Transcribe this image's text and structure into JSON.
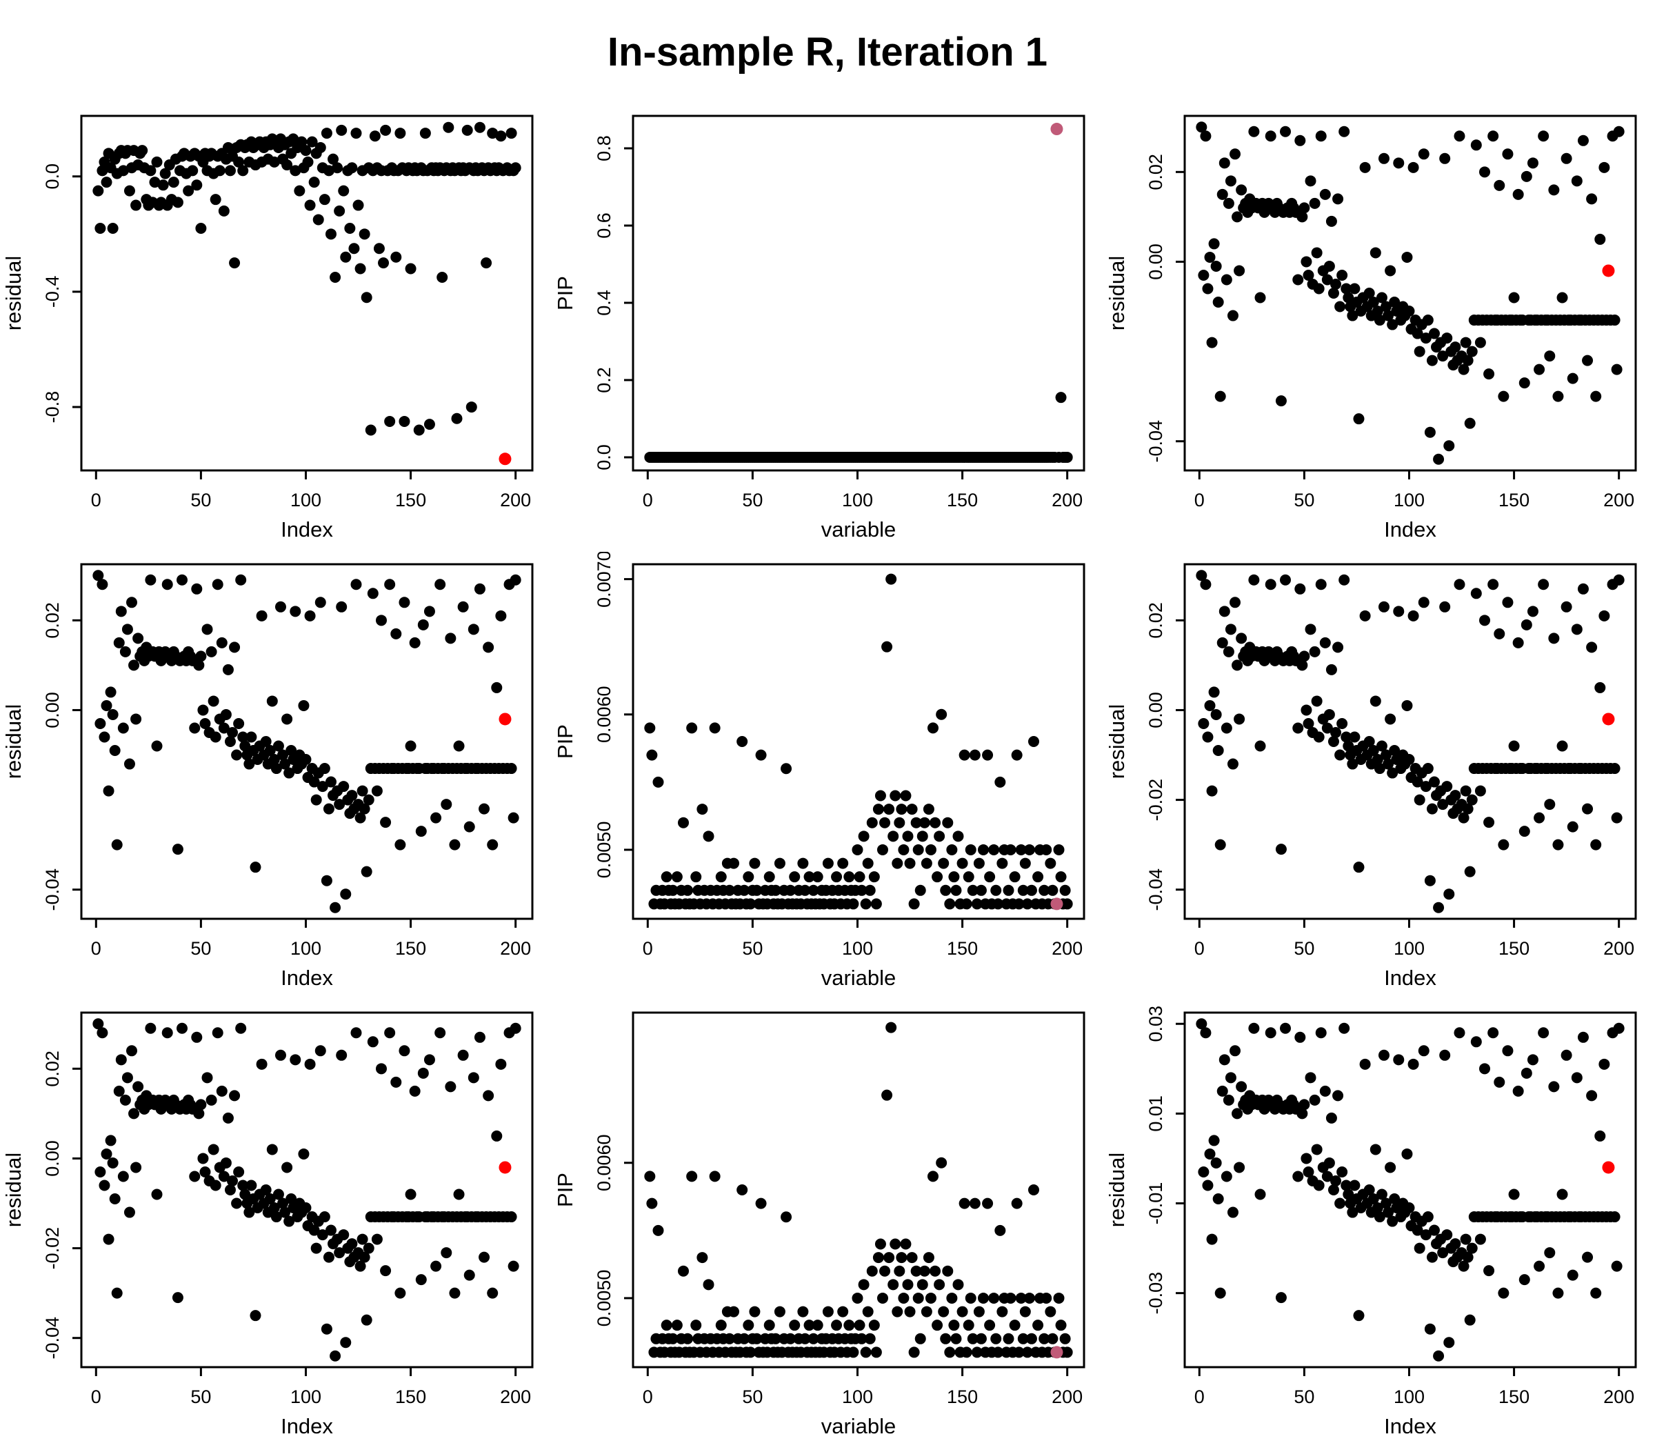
{
  "title": "In-sample R, Iteration 1",
  "point_color": "#000000",
  "datasets": {
    "residual_big": [
      -0.05,
      -0.18,
      0.02,
      0.05,
      -0.02,
      0.08,
      0.03,
      -0.18,
      0.06,
      0.01,
      0.08,
      0.09,
      0.02,
      0.08,
      0.09,
      -0.05,
      0.03,
      0.09,
      -0.1,
      0.04,
      0.08,
      0.09,
      0.03,
      -0.08,
      -0.1,
      0.02,
      -0.09,
      -0.02,
      0.05,
      -0.1,
      -0.09,
      -0.03,
      0.01,
      -0.1,
      0.04,
      -0.08,
      -0.02,
      0.06,
      -0.09,
      0.02,
      0.07,
      0.08,
      0.01,
      -0.05,
      0.07,
      0.02,
      0.08,
      -0.03,
      0.07,
      -0.18,
      0.05,
      0.08,
      0.02,
      0.07,
      0.08,
      0.01,
      -0.08,
      0.07,
      0.02,
      0.08,
      -0.12,
      0.06,
      0.1,
      0.02,
      0.07,
      -0.3,
      0.1,
      0.05,
      0.11,
      0.02,
      0.1,
      0.11,
      0.05,
      0.12,
      0.1,
      0.04,
      0.11,
      0.12,
      0.05,
      0.1,
      0.12,
      0.06,
      0.11,
      0.13,
      0.05,
      0.12,
      0.1,
      0.13,
      0.06,
      0.11,
      0.04,
      0.12,
      0.08,
      0.13,
      0.02,
      0.1,
      -0.05,
      0.12,
      0.03,
      0.09,
      0.05,
      -0.1,
      0.12,
      -0.02,
      0.08,
      -0.15,
      0.1,
      0.03,
      -0.08,
      0.15,
      0.02,
      -0.2,
      0.06,
      -0.35,
      0.03,
      -0.12,
      0.16,
      -0.05,
      -0.28,
      0.02,
      -0.18,
      0.03,
      -0.25,
      0.15,
      -0.1,
      -0.32,
      0.02,
      -0.2,
      -0.42,
      0.03,
      -0.88,
      0.02,
      0.14,
      0.03,
      -0.25,
      0.02,
      -0.3,
      0.16,
      0.02,
      -0.85,
      0.03,
      0.02,
      -0.28,
      0.02,
      0.15,
      0.03,
      -0.85,
      0.02,
      0.03,
      -0.32,
      0.02,
      0.03,
      0.02,
      -0.88,
      0.03,
      0.02,
      0.15,
      0.02,
      -0.86,
      0.03,
      0.02,
      0.03,
      0.02,
      0.03,
      -0.35,
      0.02,
      0.03,
      0.17,
      0.02,
      0.03,
      0.02,
      -0.84,
      0.03,
      0.02,
      0.03,
      0.02,
      0.16,
      0.03,
      -0.8,
      0.02,
      0.03,
      0.02,
      0.17,
      0.03,
      0.02,
      -0.3,
      0.03,
      0.02,
      0.15,
      0.03,
      0.02,
      0.03,
      0.14,
      0.02,
      -0.98,
      0.03,
      0.02,
      0.15,
      0.02,
      0.03
    ],
    "residual_small": [
      0.03,
      -0.003,
      0.028,
      -0.006,
      0.001,
      -0.018,
      0.004,
      -0.001,
      -0.009,
      -0.03,
      0.015,
      0.022,
      -0.004,
      0.013,
      0.018,
      -0.012,
      0.024,
      0.01,
      -0.002,
      0.016,
      0.012,
      0.013,
      0.011,
      0.014,
      0.012,
      0.029,
      0.013,
      0.012,
      -0.008,
      0.013,
      0.011,
      0.012,
      0.013,
      0.028,
      0.012,
      0.011,
      0.013,
      0.012,
      -0.031,
      0.011,
      0.029,
      0.012,
      0.011,
      0.013,
      0.012,
      0.011,
      -0.004,
      0.027,
      0.01,
      0.012,
      0.0,
      -0.003,
      0.018,
      -0.005,
      0.013,
      0.002,
      -0.006,
      0.028,
      -0.002,
      0.015,
      -0.004,
      -0.001,
      0.009,
      -0.007,
      -0.005,
      0.014,
      -0.01,
      -0.003,
      0.029,
      -0.006,
      -0.008,
      -0.01,
      -0.012,
      -0.006,
      -0.009,
      -0.035,
      -0.011,
      -0.008,
      0.021,
      -0.01,
      -0.007,
      -0.012,
      -0.009,
      0.002,
      -0.011,
      -0.013,
      -0.008,
      0.023,
      -0.01,
      -0.012,
      -0.002,
      -0.014,
      -0.009,
      -0.011,
      0.022,
      -0.013,
      -0.01,
      -0.012,
      0.001,
      -0.011,
      -0.015,
      0.021,
      -0.013,
      -0.016,
      -0.02,
      -0.014,
      0.024,
      -0.017,
      -0.013,
      -0.038,
      -0.022,
      -0.016,
      -0.019,
      -0.044,
      -0.018,
      -0.021,
      0.023,
      -0.017,
      -0.041,
      -0.02,
      -0.023,
      -0.019,
      -0.022,
      0.028,
      -0.021,
      -0.024,
      -0.018,
      -0.022,
      -0.036,
      -0.02,
      -0.013,
      0.026,
      -0.013,
      -0.018,
      -0.013,
      0.02,
      -0.013,
      -0.025,
      -0.013,
      0.028,
      -0.013,
      -0.013,
      0.017,
      -0.013,
      -0.03,
      -0.013,
      0.024,
      -0.013,
      -0.013,
      -0.008,
      -0.013,
      0.015,
      -0.013,
      -0.013,
      -0.027,
      0.019,
      -0.013,
      -0.013,
      0.022,
      -0.013,
      -0.013,
      -0.024,
      -0.013,
      0.028,
      -0.013,
      -0.013,
      -0.021,
      -0.013,
      0.016,
      -0.013,
      -0.03,
      -0.013,
      -0.008,
      -0.013,
      0.023,
      -0.013,
      -0.013,
      -0.026,
      -0.013,
      0.018,
      -0.013,
      -0.013,
      0.027,
      -0.013,
      -0.022,
      -0.013,
      0.014,
      -0.013,
      -0.03,
      -0.013,
      0.005,
      -0.013,
      0.021,
      -0.013,
      -0.002,
      -0.013,
      0.028,
      -0.013,
      -0.024,
      0.029
    ],
    "pip_zero": [
      0,
      0,
      0,
      0,
      0,
      0,
      0,
      0,
      0,
      0,
      0,
      0,
      0,
      0,
      0,
      0,
      0,
      0,
      0,
      0,
      0,
      0,
      0,
      0,
      0,
      0,
      0,
      0,
      0,
      0,
      0,
      0,
      0,
      0,
      0,
      0,
      0,
      0,
      0,
      0,
      0,
      0,
      0,
      0,
      0,
      0,
      0,
      0,
      0,
      0,
      0,
      0,
      0,
      0,
      0,
      0,
      0,
      0,
      0,
      0,
      0,
      0,
      0,
      0,
      0,
      0,
      0,
      0,
      0,
      0,
      0,
      0,
      0,
      0,
      0,
      0,
      0,
      0,
      0,
      0,
      0,
      0,
      0,
      0,
      0,
      0,
      0,
      0,
      0,
      0,
      0,
      0,
      0,
      0,
      0,
      0,
      0,
      0,
      0,
      0,
      0,
      0,
      0,
      0,
      0,
      0,
      0,
      0,
      0,
      0,
      0,
      0,
      0,
      0,
      0,
      0,
      0,
      0,
      0,
      0,
      0,
      0,
      0,
      0,
      0,
      0,
      0,
      0,
      0,
      0,
      0,
      0,
      0,
      0,
      0,
      0,
      0,
      0,
      0,
      0,
      0,
      0,
      0,
      0,
      0,
      0,
      0,
      0,
      0,
      0,
      0,
      0,
      0,
      0,
      0,
      0,
      0,
      0,
      0,
      0,
      0,
      0,
      0,
      0,
      0,
      0,
      0,
      0,
      0,
      0,
      0,
      0,
      0,
      0,
      0,
      0,
      0,
      0,
      0,
      0,
      0,
      0,
      0,
      0,
      0,
      0,
      0,
      0,
      0,
      0,
      0,
      0,
      0,
      0,
      0.85,
      0,
      0.155,
      0,
      0,
      0
    ],
    "pip_small": [
      0.0059,
      0.0057,
      0.0046,
      0.0047,
      0.0055,
      0.0046,
      0.0047,
      0.0046,
      0.0048,
      0.0047,
      0.0046,
      0.0047,
      0.0046,
      0.0048,
      0.0046,
      0.0047,
      0.0052,
      0.0046,
      0.0047,
      0.0046,
      0.0059,
      0.0046,
      0.0048,
      0.0047,
      0.0046,
      0.0053,
      0.0047,
      0.0046,
      0.0051,
      0.0047,
      0.0046,
      0.0059,
      0.0047,
      0.0046,
      0.0048,
      0.0047,
      0.0046,
      0.0049,
      0.0047,
      0.0046,
      0.0049,
      0.0046,
      0.0047,
      0.0046,
      0.0058,
      0.0047,
      0.0046,
      0.0048,
      0.0046,
      0.0047,
      0.0049,
      0.0047,
      0.0046,
      0.0057,
      0.0046,
      0.0047,
      0.0046,
      0.0048,
      0.0047,
      0.0046,
      0.0047,
      0.0046,
      0.0049,
      0.0046,
      0.0047,
      0.0056,
      0.0046,
      0.0047,
      0.0046,
      0.0048,
      0.0046,
      0.0047,
      0.0046,
      0.0049,
      0.0047,
      0.0046,
      0.0048,
      0.0046,
      0.0047,
      0.0046,
      0.0048,
      0.0046,
      0.0047,
      0.0046,
      0.0047,
      0.0049,
      0.0046,
      0.0047,
      0.0046,
      0.0048,
      0.0047,
      0.0046,
      0.0049,
      0.0047,
      0.0046,
      0.0048,
      0.0047,
      0.0046,
      0.0047,
      0.005,
      0.0048,
      0.0047,
      0.0051,
      0.0046,
      0.0049,
      0.0047,
      0.0052,
      0.0048,
      0.0046,
      0.0053,
      0.0054,
      0.005,
      0.0052,
      0.0065,
      0.0053,
      0.007,
      0.0051,
      0.0054,
      0.0049,
      0.0052,
      0.0053,
      0.005,
      0.0054,
      0.0051,
      0.0049,
      0.0053,
      0.0046,
      0.0052,
      0.005,
      0.0047,
      0.0051,
      0.0052,
      0.0049,
      0.0053,
      0.005,
      0.0059,
      0.0052,
      0.0048,
      0.0051,
      0.006,
      0.0049,
      0.0047,
      0.0052,
      0.0046,
      0.005,
      0.0048,
      0.0047,
      0.0051,
      0.0046,
      0.0049,
      0.0057,
      0.0046,
      0.0048,
      0.005,
      0.0047,
      0.0057,
      0.0046,
      0.0049,
      0.0047,
      0.005,
      0.0046,
      0.0057,
      0.0048,
      0.0046,
      0.005,
      0.0047,
      0.0046,
      0.0055,
      0.0049,
      0.005,
      0.0046,
      0.0047,
      0.005,
      0.0046,
      0.0048,
      0.0057,
      0.0046,
      0.005,
      0.0047,
      0.0049,
      0.0046,
      0.005,
      0.0047,
      0.0058,
      0.0046,
      0.0048,
      0.005,
      0.0046,
      0.0047,
      0.005,
      0.0046,
      0.0049,
      0.0047,
      0.0046,
      0.0046,
      0.005,
      0.0048,
      0.0046,
      0.0047,
      0.0046
    ]
  },
  "chart_data": [
    {
      "type": "scatter",
      "name": "residual-vs-index-1",
      "xlabel": "Index",
      "ylabel": "residual",
      "xlim": [
        -7,
        208
      ],
      "ylim": [
        -1.02,
        0.21
      ],
      "xtick_values": [
        0,
        50,
        100,
        150,
        200
      ],
      "yticks": [
        {
          "v": 0.0,
          "label": "0.0"
        },
        {
          "v": -0.4,
          "label": "-0.4"
        },
        {
          "v": -0.8,
          "label": "-0.8"
        }
      ],
      "values_ref": "residual_big",
      "highlight": {
        "index": 194,
        "color": "#ff0000"
      }
    },
    {
      "type": "scatter",
      "name": "pip-vs-variable-1",
      "xlabel": "variable",
      "ylabel": "PIP",
      "xlim": [
        -7,
        208
      ],
      "ylim": [
        -0.034,
        0.884
      ],
      "xtick_values": [
        0,
        50,
        100,
        150,
        200
      ],
      "yticks": [
        {
          "v": 0.0,
          "label": "0.0"
        },
        {
          "v": 0.2,
          "label": "0.2"
        },
        {
          "v": 0.4,
          "label": "0.4"
        },
        {
          "v": 0.6,
          "label": "0.6"
        },
        {
          "v": 0.8,
          "label": "0.8"
        }
      ],
      "values_ref": "pip_zero",
      "highlight": {
        "index": 194,
        "color": "#c05a78"
      }
    },
    {
      "type": "scatter",
      "name": "residual-vs-index-2",
      "xlabel": "Index",
      "ylabel": "residual",
      "xlim": [
        -7,
        208
      ],
      "ylim": [
        -0.0465,
        0.0325
      ],
      "xtick_values": [
        0,
        50,
        100,
        150,
        200
      ],
      "yticks": [
        {
          "v": 0.02,
          "label": "0.02"
        },
        {
          "v": 0.0,
          "label": "0.00"
        },
        {
          "v": -0.04,
          "label": "-0.04"
        }
      ],
      "values_ref": "residual_small",
      "highlight": {
        "index": 194,
        "color": "#ff0000"
      }
    },
    {
      "type": "scatter",
      "name": "residual-vs-index-3",
      "xlabel": "Index",
      "ylabel": "residual",
      "xlim": [
        -7,
        208
      ],
      "ylim": [
        -0.0465,
        0.0325
      ],
      "xtick_values": [
        0,
        50,
        100,
        150,
        200
      ],
      "yticks": [
        {
          "v": 0.02,
          "label": "0.02"
        },
        {
          "v": 0.0,
          "label": "0.00"
        },
        {
          "v": -0.04,
          "label": "-0.04"
        }
      ],
      "values_ref": "residual_small",
      "highlight": {
        "index": 194,
        "color": "#ff0000"
      }
    },
    {
      "type": "scatter",
      "name": "pip-vs-variable-2",
      "xlabel": "variable",
      "ylabel": "PIP",
      "xlim": [
        -7,
        208
      ],
      "ylim": [
        0.00449,
        0.00711
      ],
      "xtick_values": [
        0,
        50,
        100,
        150,
        200
      ],
      "yticks": [
        {
          "v": 0.005,
          "label": "0.0050"
        },
        {
          "v": 0.006,
          "label": "0.0060"
        },
        {
          "v": 0.007,
          "label": "0.0070"
        }
      ],
      "values_ref": "pip_small",
      "highlight": {
        "index": 194,
        "color": "#c05a78"
      }
    },
    {
      "type": "scatter",
      "name": "residual-vs-index-4",
      "xlabel": "Index",
      "ylabel": "residual",
      "xlim": [
        -7,
        208
      ],
      "ylim": [
        -0.0465,
        0.0325
      ],
      "xtick_values": [
        0,
        50,
        100,
        150,
        200
      ],
      "yticks": [
        {
          "v": 0.02,
          "label": "0.02"
        },
        {
          "v": 0.0,
          "label": "0.00"
        },
        {
          "v": -0.02,
          "label": "-0.02"
        },
        {
          "v": -0.04,
          "label": "-0.04"
        }
      ],
      "values_ref": "residual_small",
      "highlight": {
        "index": 194,
        "color": "#ff0000"
      }
    },
    {
      "type": "scatter",
      "name": "residual-vs-index-5",
      "xlabel": "Index",
      "ylabel": "residual",
      "xlim": [
        -7,
        208
      ],
      "ylim": [
        -0.0465,
        0.0325
      ],
      "xtick_values": [
        0,
        50,
        100,
        150,
        200
      ],
      "yticks": [
        {
          "v": 0.02,
          "label": "0.02"
        },
        {
          "v": 0.0,
          "label": "0.00"
        },
        {
          "v": -0.02,
          "label": "-0.02"
        },
        {
          "v": -0.04,
          "label": "-0.04"
        }
      ],
      "values_ref": "residual_small",
      "highlight": {
        "index": 194,
        "color": "#ff0000"
      }
    },
    {
      "type": "scatter",
      "name": "pip-vs-variable-3",
      "xlabel": "variable",
      "ylabel": "PIP",
      "xlim": [
        -7,
        208
      ],
      "ylim": [
        0.00449,
        0.00711
      ],
      "xtick_values": [
        0,
        50,
        100,
        150,
        200
      ],
      "yticks": [
        {
          "v": 0.005,
          "label": "0.0050"
        },
        {
          "v": 0.006,
          "label": "0.0060"
        }
      ],
      "values_ref": "pip_small",
      "highlight": {
        "index": 194,
        "color": "#c05a78"
      }
    },
    {
      "type": "scatter",
      "name": "residual-vs-index-6",
      "xlabel": "Index",
      "ylabel": "residual",
      "xlim": [
        -7,
        208
      ],
      "ylim": [
        -0.0465,
        0.0325
      ],
      "xtick_values": [
        0,
        50,
        100,
        150,
        200
      ],
      "yticks": [
        {
          "v": 0.03,
          "label": "0.03"
        },
        {
          "v": 0.01,
          "label": "0.01"
        },
        {
          "v": -0.01,
          "label": "-0.01"
        },
        {
          "v": -0.03,
          "label": "-0.03"
        }
      ],
      "values_ref": "residual_small",
      "highlight": {
        "index": 194,
        "color": "#ff0000"
      }
    }
  ]
}
